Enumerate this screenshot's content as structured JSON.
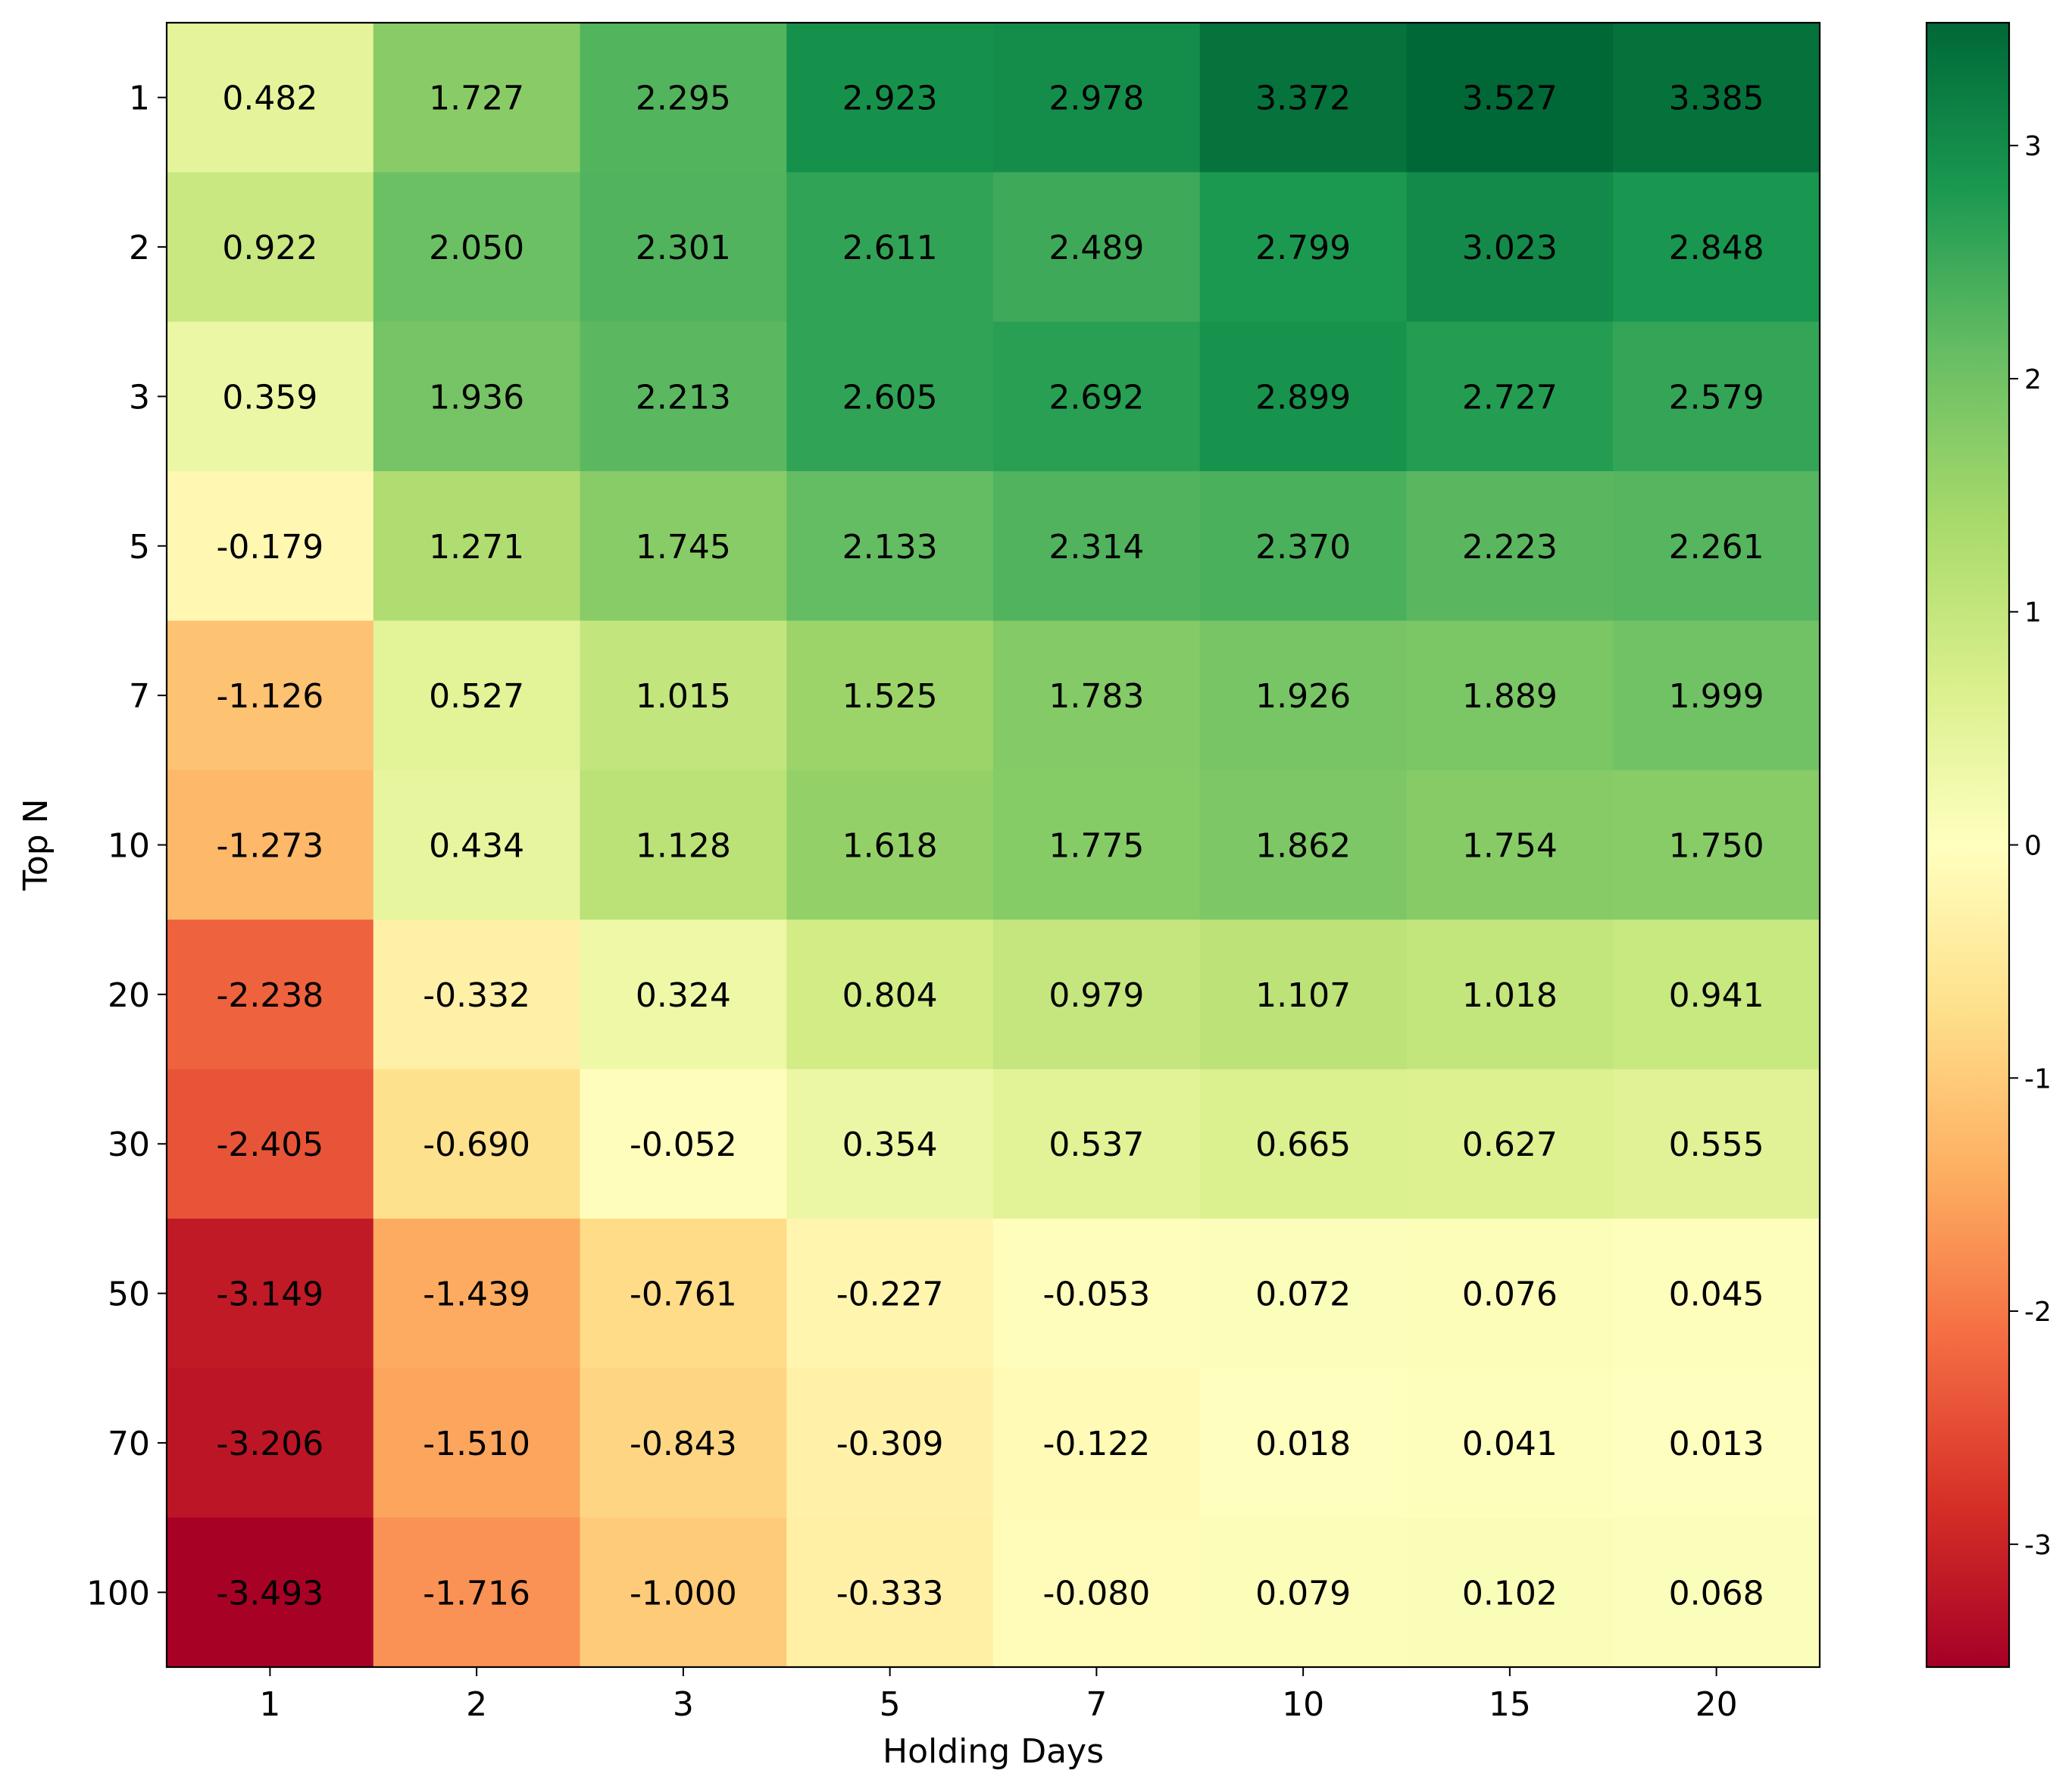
{
  "chart_data": {
    "type": "heatmap",
    "title": "",
    "xlabel": "Holding Days",
    "ylabel": "Top N",
    "x_categories": [
      "1",
      "2",
      "3",
      "5",
      "7",
      "10",
      "15",
      "20"
    ],
    "y_categories": [
      "1",
      "2",
      "3",
      "5",
      "7",
      "10",
      "20",
      "30",
      "50",
      "70",
      "100"
    ],
    "values": [
      [
        0.482,
        1.727,
        2.295,
        2.923,
        2.978,
        3.372,
        3.527,
        3.385
      ],
      [
        0.922,
        2.05,
        2.301,
        2.611,
        2.489,
        2.799,
        3.023,
        2.848
      ],
      [
        0.359,
        1.936,
        2.213,
        2.605,
        2.692,
        2.899,
        2.727,
        2.579
      ],
      [
        -0.179,
        1.271,
        1.745,
        2.133,
        2.314,
        2.37,
        2.223,
        2.261
      ],
      [
        -1.126,
        0.527,
        1.015,
        1.525,
        1.783,
        1.926,
        1.889,
        1.999
      ],
      [
        -1.273,
        0.434,
        1.128,
        1.618,
        1.775,
        1.862,
        1.754,
        1.75
      ],
      [
        -2.238,
        -0.332,
        0.324,
        0.804,
        0.979,
        1.107,
        1.018,
        0.941
      ],
      [
        -2.405,
        -0.69,
        -0.052,
        0.354,
        0.537,
        0.665,
        0.627,
        0.555
      ],
      [
        -3.149,
        -1.439,
        -0.761,
        -0.227,
        -0.053,
        0.072,
        0.076,
        0.045
      ],
      [
        -3.206,
        -1.51,
        -0.843,
        -0.309,
        -0.122,
        0.018,
        0.041,
        0.013
      ],
      [
        -3.493,
        -1.716,
        -1.0,
        -0.333,
        -0.08,
        0.079,
        0.102,
        0.068
      ]
    ],
    "colormap": "RdYlGn",
    "vmin": -3.527,
    "vmax": 3.527,
    "colorbar_ticks": [
      -3,
      -2,
      -1,
      0,
      1,
      2,
      3
    ],
    "grid": false
  }
}
